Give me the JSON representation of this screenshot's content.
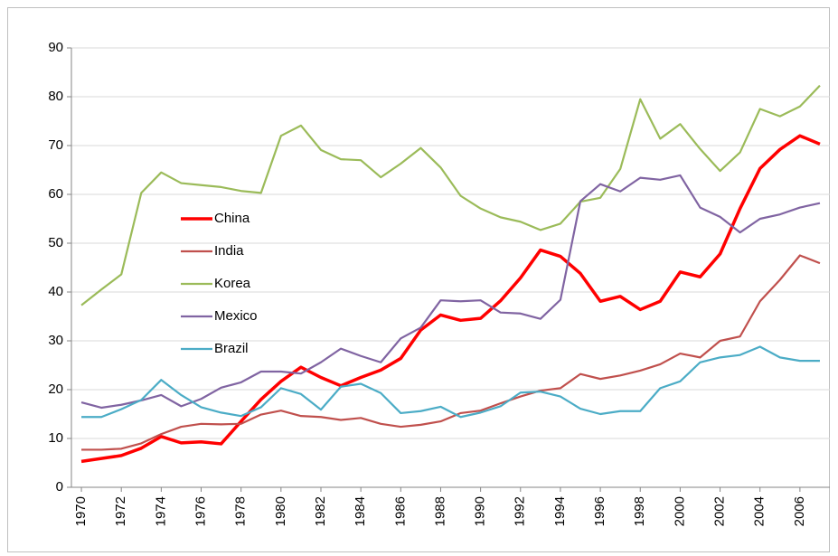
{
  "chart_data": {
    "type": "line",
    "x": [
      1970,
      1971,
      1972,
      1973,
      1974,
      1975,
      1976,
      1977,
      1978,
      1979,
      1980,
      1981,
      1982,
      1983,
      1984,
      1985,
      1986,
      1987,
      1988,
      1989,
      1990,
      1991,
      1992,
      1993,
      1994,
      1995,
      1996,
      1997,
      1998,
      1999,
      2000,
      2001,
      2002,
      2003,
      2004,
      2005,
      2006,
      2007
    ],
    "xlim": [
      1969.5,
      2007.5
    ],
    "xticks": [
      1970,
      1972,
      1974,
      1976,
      1978,
      1980,
      1982,
      1984,
      1986,
      1988,
      1990,
      1992,
      1994,
      1996,
      1998,
      2000,
      2002,
      2004,
      2006
    ],
    "ylim": [
      0,
      90
    ],
    "yticks": [
      0,
      10,
      20,
      30,
      40,
      50,
      60,
      70,
      80,
      90
    ],
    "grid": true,
    "legend": "inside-left",
    "series": [
      {
        "name": "China",
        "color": "#ff0000",
        "width": 3.5,
        "values": [
          5.3,
          5.9,
          6.5,
          8.0,
          10.4,
          9.1,
          9.3,
          8.9,
          13.5,
          18.0,
          21.7,
          24.6,
          22.5,
          20.8,
          22.5,
          24.0,
          26.4,
          32.2,
          35.3,
          34.2,
          34.6,
          38.2,
          42.9,
          48.6,
          47.3,
          43.8,
          38.1,
          39.1,
          36.4,
          38.1,
          44.1,
          43.1,
          47.8,
          57.1,
          65.3,
          69.2,
          72.0,
          70.3
        ]
      },
      {
        "name": "India",
        "color": "#c0504d",
        "width": 2.2,
        "values": [
          7.7,
          7.7,
          7.9,
          9.0,
          10.9,
          12.4,
          13.0,
          12.9,
          13.0,
          14.9,
          15.7,
          14.6,
          14.4,
          13.8,
          14.2,
          13.0,
          12.4,
          12.8,
          13.5,
          15.2,
          15.7,
          17.2,
          18.6,
          19.8,
          20.3,
          23.2,
          22.2,
          22.9,
          23.9,
          25.2,
          27.4,
          26.6,
          30.0,
          30.9,
          38.1,
          42.5,
          47.5,
          45.9
        ]
      },
      {
        "name": "Korea",
        "color": "#9bbb59",
        "width": 2.2,
        "values": [
          37.3,
          40.5,
          43.6,
          60.3,
          64.5,
          62.3,
          61.9,
          61.5,
          60.7,
          60.3,
          72.0,
          74.1,
          69.1,
          67.2,
          67.0,
          63.5,
          66.3,
          69.5,
          65.5,
          59.7,
          57.1,
          55.3,
          54.4,
          52.7,
          54.0,
          58.5,
          59.3,
          65.2,
          79.5,
          71.4,
          74.4,
          69.3,
          64.8,
          68.6,
          77.5,
          76.0,
          78.0,
          82.3
        ]
      },
      {
        "name": "Mexico",
        "color": "#8064a2",
        "width": 2.2,
        "values": [
          17.4,
          16.3,
          16.9,
          17.8,
          18.9,
          16.6,
          18.1,
          20.4,
          21.5,
          23.7,
          23.7,
          23.3,
          25.6,
          28.4,
          26.9,
          25.6,
          30.5,
          32.7,
          38.3,
          38.1,
          38.3,
          35.8,
          35.6,
          34.5,
          38.4,
          58.6,
          62.1,
          60.6,
          63.4,
          63.0,
          63.9,
          57.3,
          55.4,
          52.2,
          55.0,
          55.9,
          57.3,
          58.2
        ]
      },
      {
        "name": "Brazil",
        "color": "#4bacc6",
        "width": 2.2,
        "values": [
          14.4,
          14.4,
          16.0,
          17.9,
          22.0,
          18.9,
          16.4,
          15.3,
          14.6,
          16.4,
          20.3,
          19.1,
          15.9,
          20.6,
          21.2,
          19.3,
          15.2,
          15.6,
          16.5,
          14.4,
          15.3,
          16.6,
          19.4,
          19.6,
          18.6,
          16.1,
          15.0,
          15.6,
          15.6,
          20.3,
          21.7,
          25.6,
          26.6,
          27.1,
          28.8,
          26.6,
          25.9,
          25.9
        ]
      }
    ]
  }
}
